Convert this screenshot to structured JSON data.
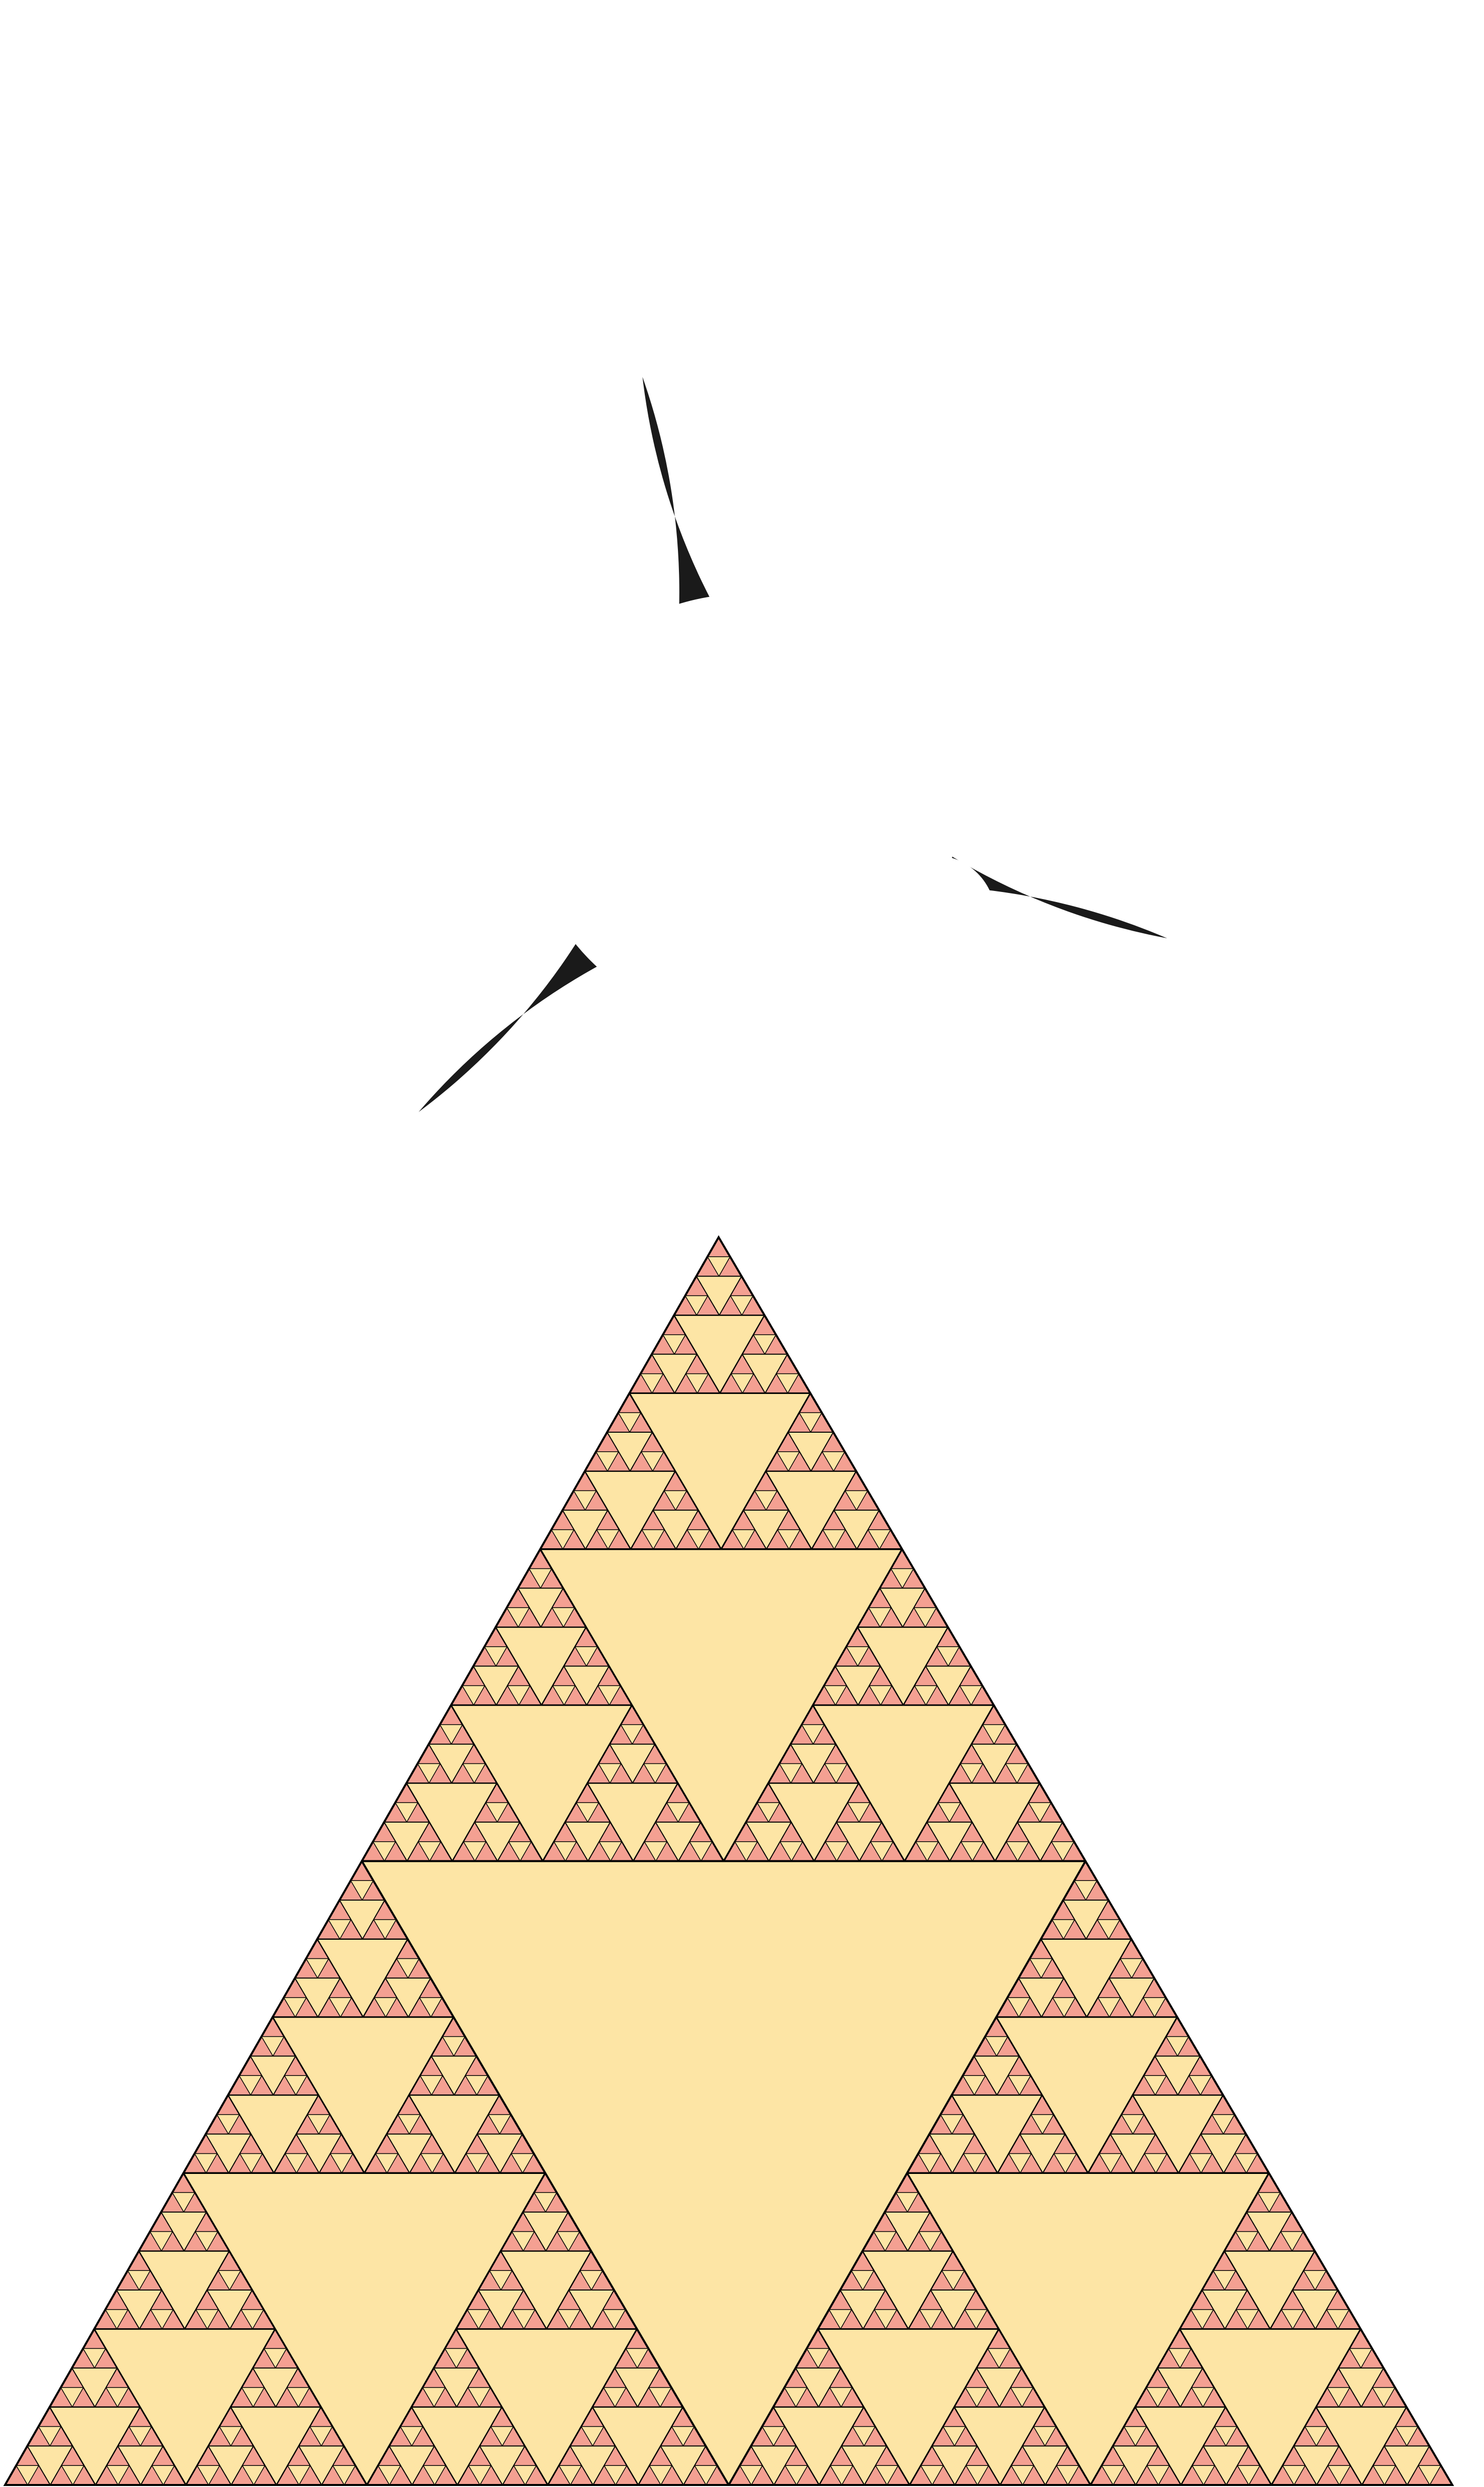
{
  "figure": {
    "panels": [
      {
        "kind": "apollonian-gasket",
        "description_name": "curvilinear-triangle-circle-packing",
        "levels": 5,
        "stroke_color": "#1a1a1a",
        "fill_color": "#ffffff",
        "background_color": "#ffffff"
      },
      {
        "kind": "sierpinski-triangle",
        "levels": 6,
        "filled_color": "#f4a092",
        "hole_color": "#fde5a5",
        "stroke_color": "#000000"
      }
    ]
  }
}
